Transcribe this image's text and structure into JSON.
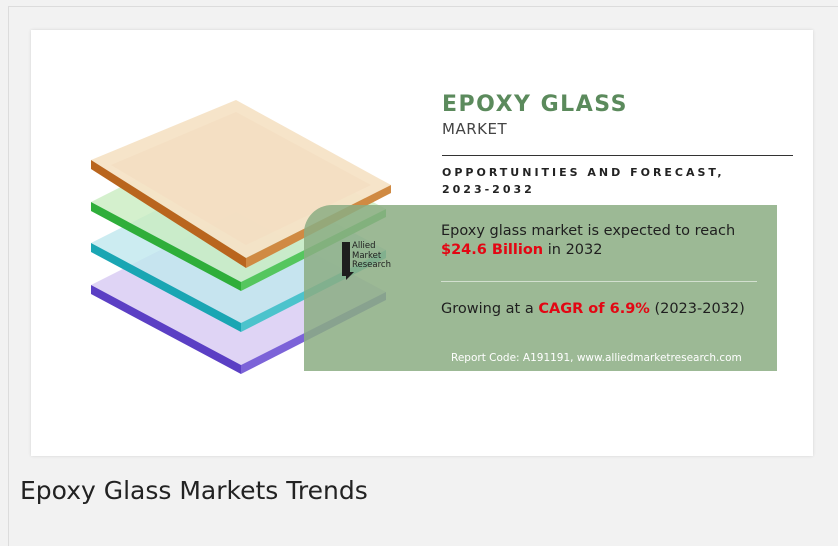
{
  "infographic": {
    "title": "EPOXY GLASS",
    "subtitle": "MARKET",
    "forecast_heading": "OPPORTUNITIES AND FORECAST, 2023-2032",
    "line1_prefix": "Epoxy glass market is expected to reach ",
    "line1_value": "$24.6 Billion",
    "line1_suffix": " in 2032",
    "line2_prefix": "Growing at a ",
    "line2_value": "CAGR of 6.9%",
    "line2_suffix": " (2023-2032)",
    "report_code": "Report Code: A191191, www.alliedmarketresearch.com",
    "logo_lines": [
      "Allied",
      "Market",
      "Research"
    ],
    "colors": {
      "title_green": "#5b8a5c",
      "panel_green": "#8bad82",
      "highlight_red": "#e30613"
    },
    "glass_layers": [
      "peach",
      "green",
      "teal",
      "purple"
    ]
  },
  "caption": "Epoxy Glass Markets Trends"
}
